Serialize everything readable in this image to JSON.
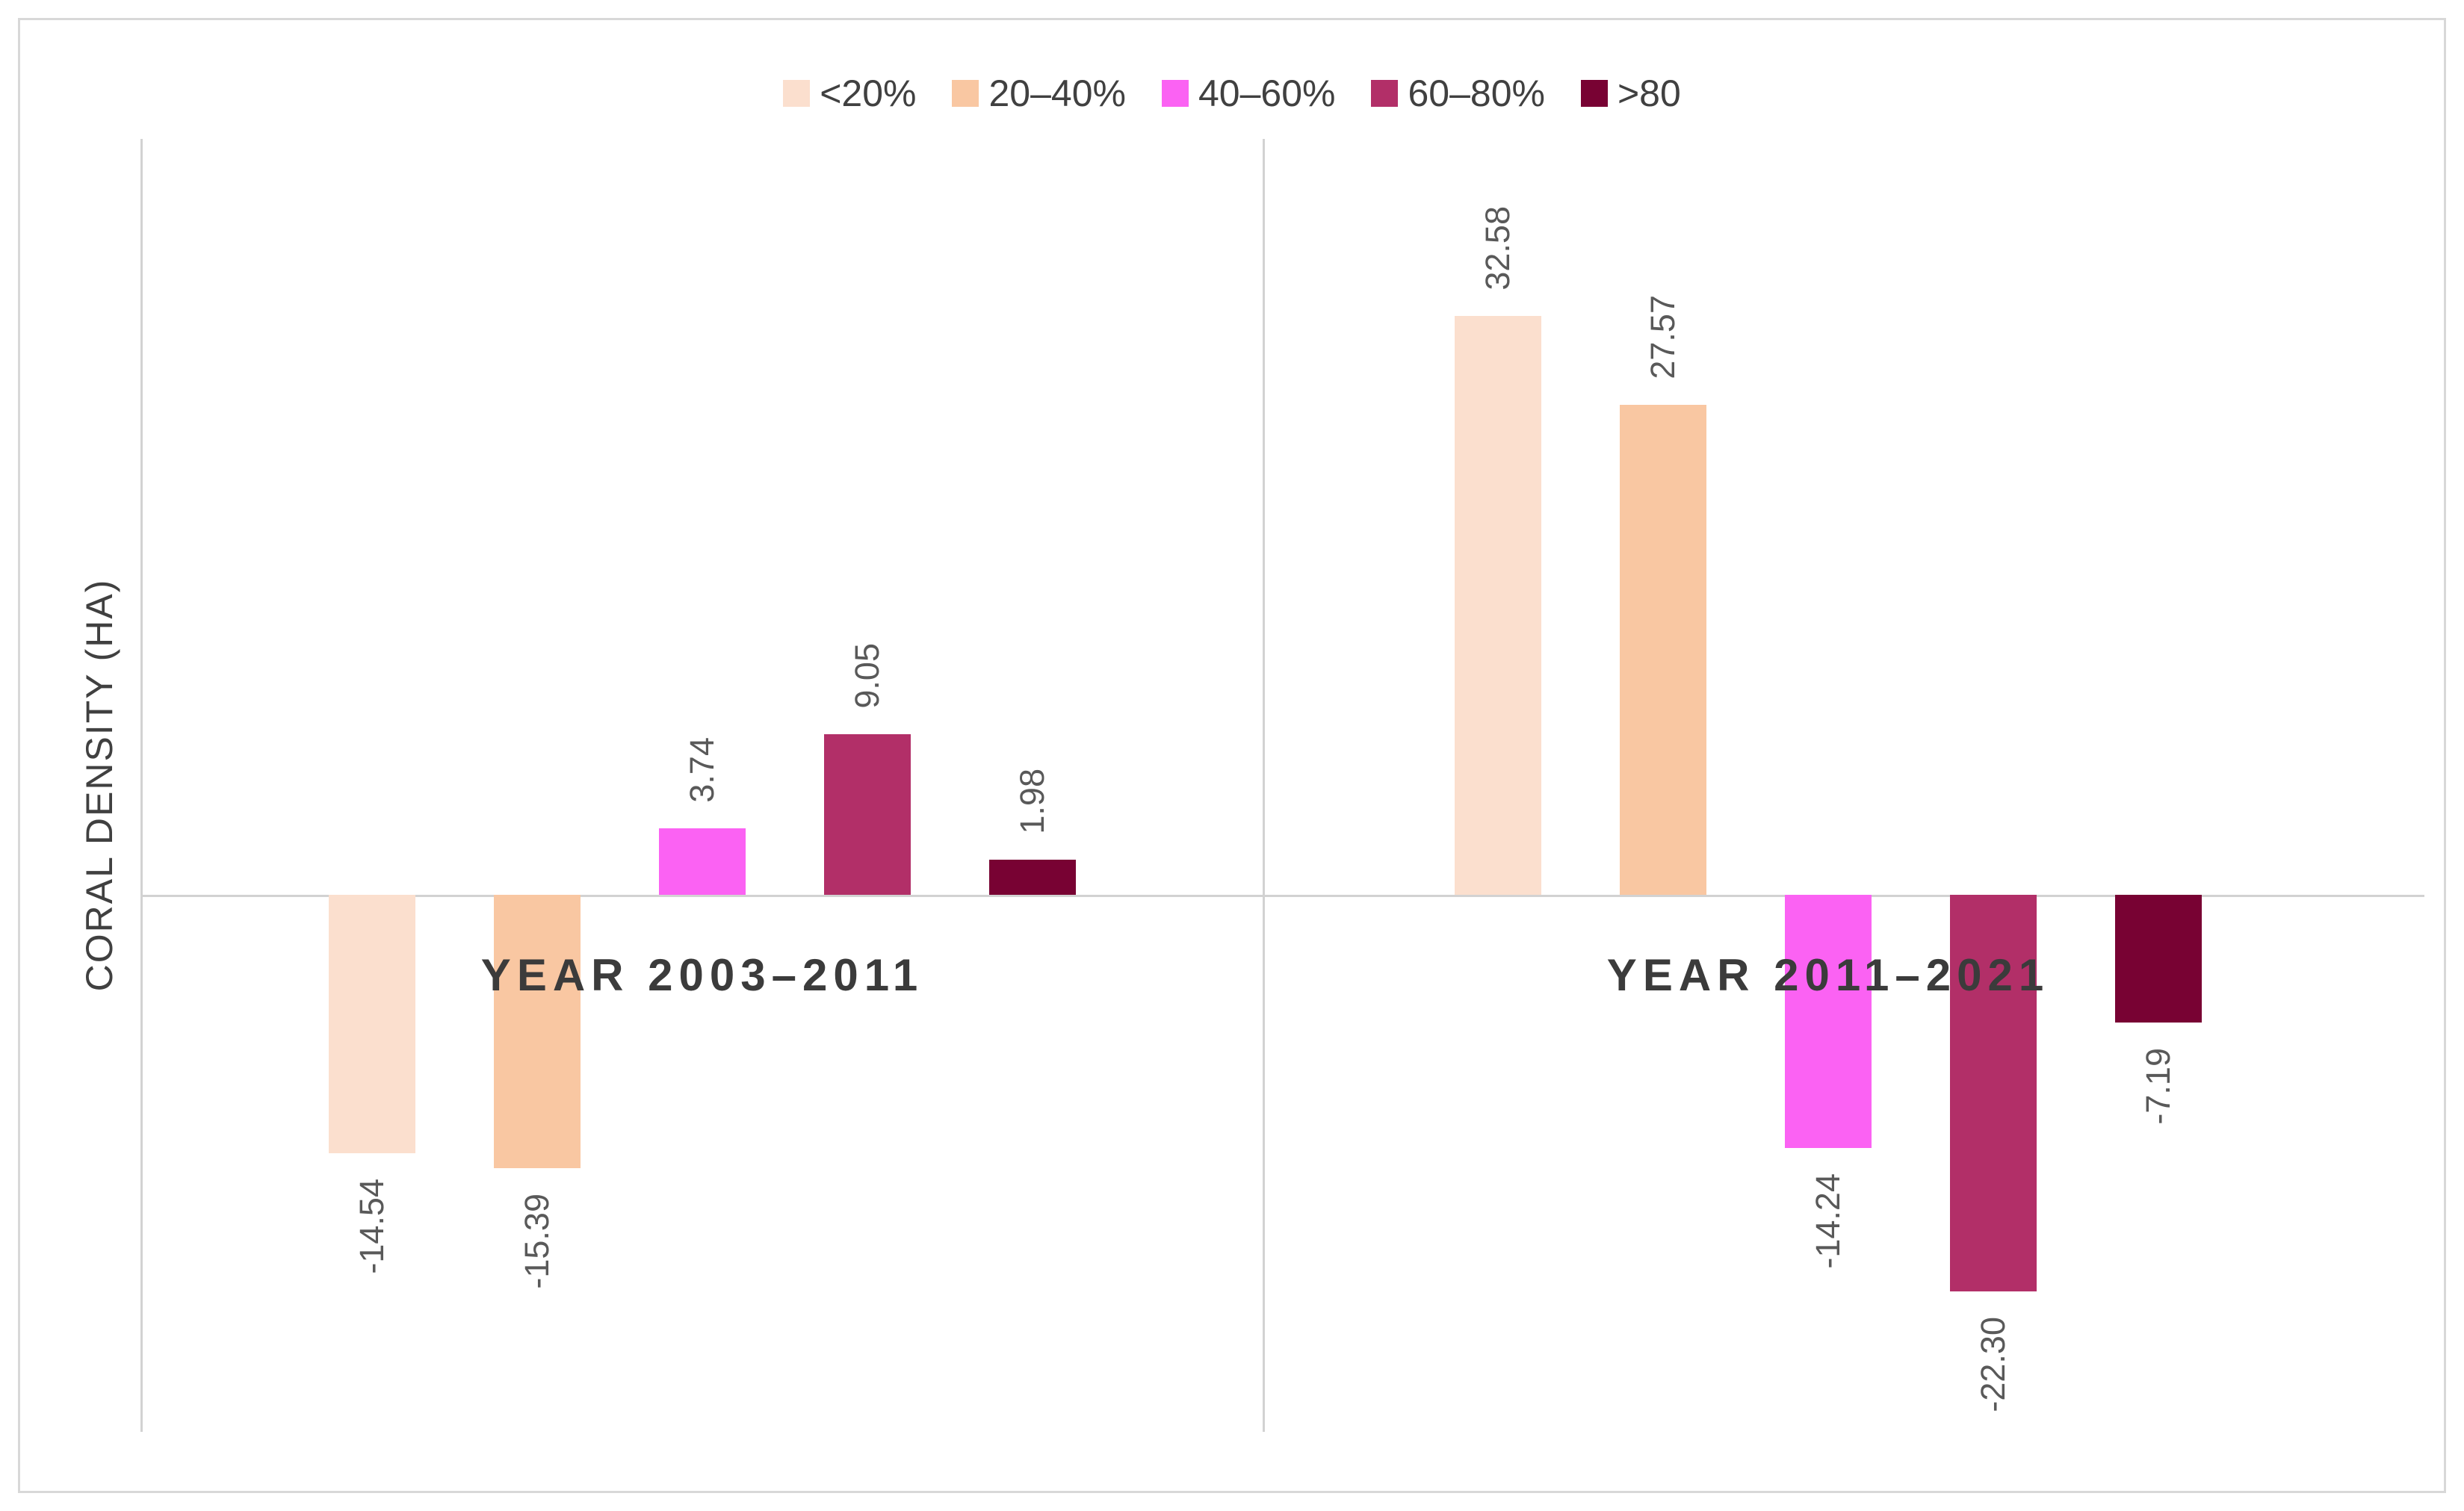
{
  "figure": {
    "background": "#FFFFFF",
    "frame_color": "#D8D8D8"
  },
  "colors": {
    "axis_line": "#D2D2D2",
    "legend_text": "#404040",
    "axis_title_text": "#404040",
    "group_title_text": "#3B3B3B",
    "value_label_text": "#595959"
  },
  "chart_data": {
    "type": "bar",
    "title": "",
    "xlabel": "",
    "ylabel": "CORAL DENSITY (HA)",
    "ylim": [
      -30,
      42.5
    ],
    "grid": false,
    "legend_position": "top-center",
    "value_label_rotation": "90deg-counterclockwise",
    "categories": [
      "YEAR 2003–2011",
      "YEAR 2011–2021"
    ],
    "series": [
      {
        "id": "lt20",
        "name": "<20%",
        "color": "#FBDFCE",
        "values": [
          -14.54,
          32.58
        ],
        "value_labels": [
          "-14.54",
          "32.58"
        ]
      },
      {
        "id": "20-40",
        "name": "20–40%",
        "color": "#F9C7A2",
        "values": [
          -15.39,
          27.57
        ],
        "value_labels": [
          "-15.39",
          "27.57"
        ]
      },
      {
        "id": "40-60",
        "name": "40–60%",
        "color": "#FB62F3",
        "values": [
          3.74,
          -14.24
        ],
        "value_labels": [
          "3.74",
          "-14.24"
        ]
      },
      {
        "id": "60-80",
        "name": "60–80%",
        "color": "#B22F68",
        "values": [
          9.05,
          -22.3
        ],
        "value_labels": [
          "9.05",
          "-22.30"
        ]
      },
      {
        "id": "gt80",
        "name": ">80",
        "color": "#780233",
        "values": [
          1.98,
          -7.19
        ],
        "value_labels": [
          "1.98",
          "-7.19"
        ]
      }
    ],
    "groups": [
      {
        "id": "2003-2011",
        "label": "YEAR 2003–2011"
      },
      {
        "id": "2011-2021",
        "label": "YEAR 2011–2021"
      }
    ]
  }
}
